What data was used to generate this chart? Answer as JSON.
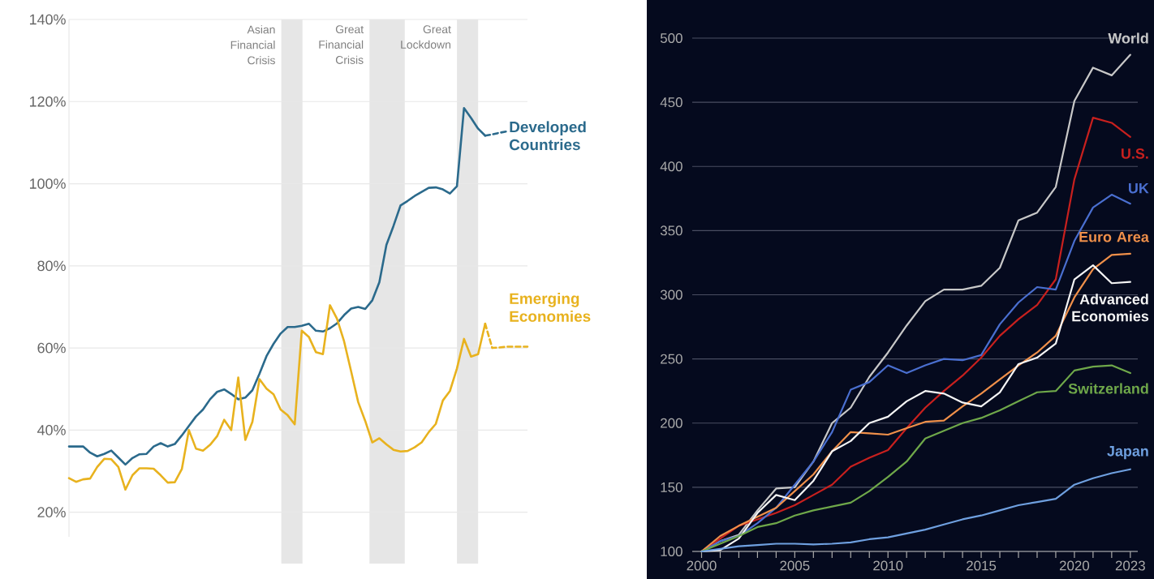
{
  "chart_data": [
    {
      "type": "line",
      "ylim": [
        14,
        140
      ],
      "tick_labels": "y",
      "grid": "y",
      "categories": [
        null,
        null,
        null,
        null,
        null,
        null,
        null,
        null,
        null,
        null,
        null,
        null,
        null,
        null,
        null,
        null,
        null,
        null,
        null,
        null,
        null,
        null,
        null,
        null,
        null,
        null,
        null,
        null,
        null,
        null,
        null,
        null,
        null,
        null,
        null,
        null,
        null,
        null,
        null,
        null,
        null,
        null,
        null,
        null,
        null,
        null,
        null,
        null,
        null,
        null,
        null,
        null,
        null,
        null,
        null,
        null,
        null,
        null,
        null,
        null,
        null,
        null,
        null,
        null,
        null,
        null
      ],
      "yticks": [
        {
          "value": 20,
          "label": "20%"
        },
        {
          "value": 40,
          "label": "40%"
        },
        {
          "value": 60,
          "label": "60%"
        },
        {
          "value": 80,
          "label": "80%"
        },
        {
          "value": 100,
          "label": "100%"
        },
        {
          "value": 120,
          "label": "120%"
        },
        {
          "value": 140,
          "label": "140%"
        }
      ],
      "annotations": [
        "Asian Financial Crisis",
        "Great Financial Crisis",
        "Great Lockdown"
      ],
      "series": [
        {
          "name": "Developed Countries",
          "color": "#2b6a8c",
          "values": [
            36,
            36,
            36,
            34.5,
            33.6,
            34.2,
            35,
            33.3,
            31.6,
            33.2,
            34.1,
            34.2,
            36,
            36.8,
            36,
            36.6,
            38.7,
            41,
            43.3,
            45,
            47.5,
            49.3,
            49.9,
            48.8,
            47.5,
            47.9,
            49.7,
            53.7,
            58,
            61,
            63.5,
            65.1,
            65.1,
            65.4,
            65.9,
            64.2,
            64,
            64.8,
            66,
            68,
            69.6,
            70,
            69.5,
            71.6,
            76,
            85.1,
            89.7,
            94.7,
            95.8,
            97,
            98,
            99,
            99.1,
            98.6,
            97.6,
            99.4,
            118.4,
            116,
            113.4,
            111.7,
            null,
            null,
            null,
            null,
            null,
            null
          ]
        },
        {
          "color": "#2b6a8c",
          "line_style": "dashed",
          "values": [
            null,
            null,
            null,
            null,
            null,
            null,
            null,
            null,
            null,
            null,
            null,
            null,
            null,
            null,
            null,
            null,
            null,
            null,
            null,
            null,
            null,
            null,
            null,
            null,
            null,
            null,
            null,
            null,
            null,
            null,
            null,
            null,
            null,
            null,
            null,
            null,
            null,
            null,
            null,
            null,
            null,
            null,
            null,
            null,
            null,
            null,
            null,
            null,
            null,
            null,
            null,
            null,
            null,
            null,
            null,
            null,
            null,
            null,
            null,
            111.7,
            112,
            112.4,
            112.7,
            null,
            null,
            null
          ]
        },
        {
          "name": "Emerging Economies",
          "color": "#e8b21e",
          "values": [
            28.3,
            27.4,
            28,
            28.2,
            31,
            33,
            32.9,
            31,
            25.5,
            29,
            30.7,
            30.7,
            30.6,
            29,
            27.2,
            27.3,
            30.5,
            40,
            35.5,
            35,
            36.4,
            38.5,
            42.5,
            40,
            52.8,
            37.6,
            42,
            52.4,
            50.1,
            48.7,
            45,
            43.6,
            41.4,
            64.2,
            62.7,
            59,
            58.5,
            70.4,
            67.1,
            61.6,
            54.3,
            46.8,
            42.2,
            37,
            38,
            36.5,
            35.2,
            34.8,
            34.9,
            35.8,
            37,
            39.5,
            41.5,
            47.2,
            49.5,
            55,
            62.2,
            57.9,
            58.5,
            65.9,
            null,
            null,
            null,
            null,
            null,
            null
          ]
        },
        {
          "color": "#e8b21e",
          "line_style": "dashed",
          "values": [
            null,
            null,
            null,
            null,
            null,
            null,
            null,
            null,
            null,
            null,
            null,
            null,
            null,
            null,
            null,
            null,
            null,
            null,
            null,
            null,
            null,
            null,
            null,
            null,
            null,
            null,
            null,
            null,
            null,
            null,
            null,
            null,
            null,
            null,
            null,
            null,
            null,
            null,
            null,
            null,
            null,
            null,
            null,
            null,
            null,
            null,
            null,
            null,
            null,
            null,
            null,
            null,
            null,
            null,
            null,
            null,
            null,
            null,
            null,
            65.9,
            60,
            60.1,
            60.3,
            60.3,
            60.3,
            60.3
          ]
        }
      ]
    },
    {
      "type": "line",
      "xlim": [
        1999.5,
        2023.4
      ],
      "ylim": [
        100,
        500
      ],
      "grid": "y",
      "yticks": [
        100,
        150,
        200,
        250,
        300,
        350,
        400,
        450,
        500
      ],
      "xticks": [
        2000,
        {
          "value": 2001,
          "label": null
        },
        {
          "value": 2002,
          "label": null
        },
        {
          "value": 2003,
          "label": null
        },
        {
          "value": 2004,
          "label": null
        },
        2005,
        {
          "value": 2006,
          "label": null
        },
        {
          "value": 2007,
          "label": null
        },
        {
          "value": 2008,
          "label": null
        },
        {
          "value": 2009,
          "label": null
        },
        2010,
        {
          "value": 2011,
          "label": null
        },
        {
          "value": 2012,
          "label": null
        },
        {
          "value": 2013,
          "label": null
        },
        {
          "value": 2014,
          "label": null
        },
        2015,
        {
          "value": 2016,
          "label": null
        },
        {
          "value": 2017,
          "label": null
        },
        {
          "value": 2018,
          "label": null
        },
        {
          "value": 2019,
          "label": null
        },
        2020,
        {
          "value": 2021,
          "label": null
        },
        {
          "value": 2022,
          "label": null
        },
        2023
      ],
      "x": [
        2000,
        2001,
        2002,
        2003,
        2004,
        2005,
        2006,
        2007,
        2008,
        2009,
        2010,
        2011,
        2012,
        2013,
        2014,
        2015,
        2016,
        2017,
        2018,
        2019,
        2020,
        2021,
        2022,
        2023
      ],
      "series": [
        {
          "name": "World",
          "color": "#c8c8c8",
          "values": [
            100,
            108,
            113,
            132,
            149,
            150,
            170,
            200,
            212,
            236,
            255,
            276,
            295,
            304,
            304,
            307,
            321,
            358,
            364,
            384,
            451,
            477,
            471,
            487
          ]
        },
        {
          "name": "U.S.",
          "color": "#c8201e",
          "values": [
            100,
            110,
            120,
            125,
            130,
            136,
            144,
            152,
            166,
            173,
            179,
            196,
            212,
            225,
            237,
            251,
            268,
            281,
            292,
            312,
            390,
            438,
            434,
            423
          ]
        },
        {
          "name": "UK",
          "color": "#4a6fd0",
          "values": [
            100,
            108,
            112,
            122,
            134,
            152,
            170,
            193,
            226,
            232,
            245,
            239,
            245,
            250,
            249,
            253,
            277,
            294,
            306,
            304,
            342,
            368,
            378,
            371
          ]
        },
        {
          "name": "Euro Area",
          "color": "#f0904a",
          "values": [
            100,
            112,
            120,
            127,
            134,
            147,
            160,
            178,
            193,
            192,
            191,
            196,
            201,
            202,
            213,
            223,
            234,
            245,
            255,
            268,
            298,
            320,
            331,
            332
          ]
        },
        {
          "name": "Advanced Economies",
          "color": "#f5f5f5",
          "values": [
            100,
            101,
            110,
            130,
            144,
            140,
            155,
            178,
            186,
            200,
            205,
            217,
            225,
            223,
            216,
            213,
            224,
            246,
            251,
            262,
            312,
            323,
            309,
            310
          ]
        },
        {
          "name": "Switzerland",
          "color": "#6fa84a",
          "values": [
            100,
            106,
            112,
            119,
            122,
            128,
            132,
            135,
            138,
            147,
            158,
            170,
            188,
            194,
            200,
            204,
            210,
            217,
            224,
            225,
            241,
            244,
            245,
            239
          ]
        },
        {
          "name": "Japan",
          "color": "#6fa0e0",
          "values": [
            100,
            102,
            104,
            105,
            106,
            106,
            105.5,
            106,
            107,
            109.5,
            111,
            114,
            117,
            121,
            125,
            128,
            132,
            136,
            138.5,
            141,
            152,
            157,
            161,
            164
          ]
        }
      ]
    }
  ]
}
